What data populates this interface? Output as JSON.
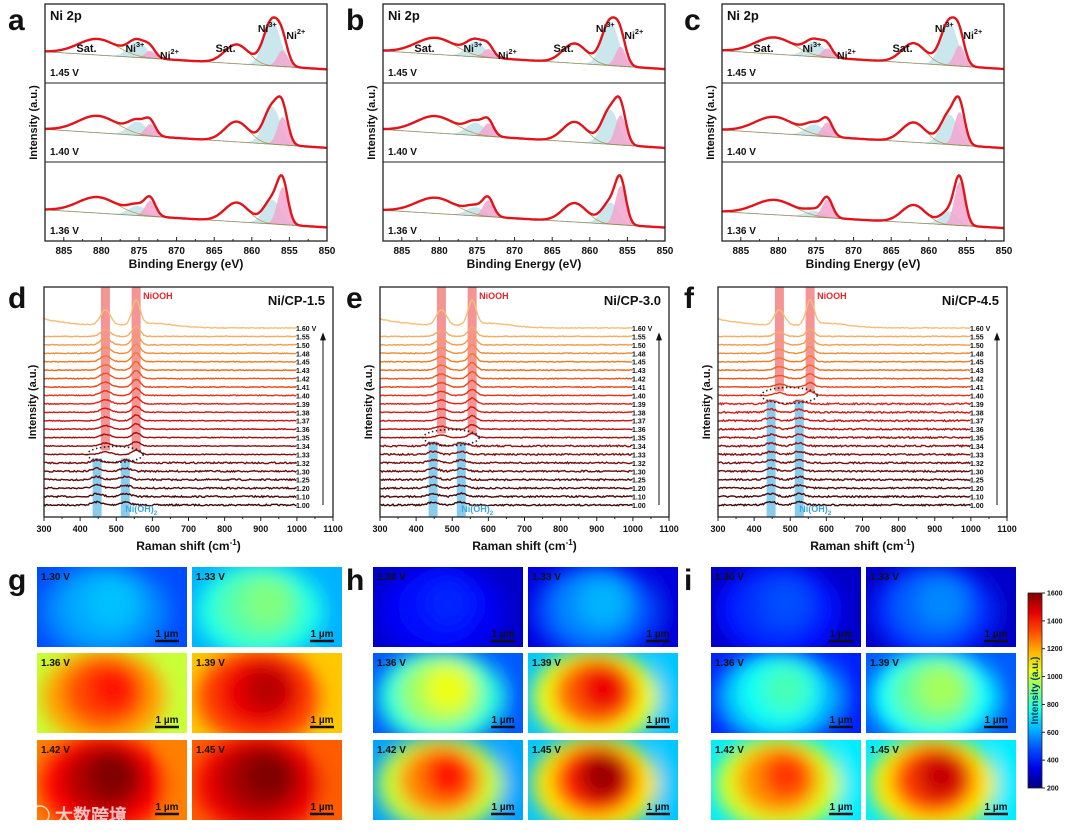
{
  "panel_letters": [
    "a",
    "b",
    "c",
    "d",
    "e",
    "f",
    "g",
    "h",
    "i"
  ],
  "watermark": "大数跨境",
  "chart_data": [
    {
      "type": "line",
      "panel": "a",
      "title": "Ni 2p",
      "xlabel": "Binding Energy (eV)",
      "ylabel": "Intensity (a.u.)",
      "xlim": [
        887.5,
        850
      ],
      "xticks": [
        885,
        880,
        875,
        870,
        865,
        860,
        855,
        850
      ],
      "peak_labels": {
        "sat": "Sat.",
        "ni3": "Ni3+",
        "ni2": "Ni2+"
      },
      "peaks_eV": {
        "sat1": 880.5,
        "ni3_a": 875.2,
        "ni2_a": 873.5,
        "sat2": 862.0,
        "ni3_b": 857.3,
        "ni2_b": 855.9
      },
      "spectra": [
        {
          "voltage": "1.45 V",
          "ni3_fraction": 0.78
        },
        {
          "voltage": "1.40 V",
          "ni3_fraction": 0.55
        },
        {
          "voltage": "1.36 V",
          "ni3_fraction": 0.3
        }
      ]
    },
    {
      "type": "line",
      "panel": "b",
      "title": "Ni 2p",
      "xlabel": "Binding Energy (eV)",
      "ylabel": "Intensity (a.u.)",
      "xlim": [
        887.5,
        850
      ],
      "xticks": [
        885,
        880,
        875,
        870,
        865,
        860,
        855,
        850
      ],
      "peak_labels": {
        "sat": "Sat.",
        "ni3": "Ni3+",
        "ni2": "Ni2+"
      },
      "peaks_eV": {
        "sat1": 880.5,
        "ni3_a": 875.2,
        "ni2_a": 873.5,
        "sat2": 862.0,
        "ni3_b": 857.3,
        "ni2_b": 855.9
      },
      "spectra": [
        {
          "voltage": "1.45 V",
          "ni3_fraction": 0.72
        },
        {
          "voltage": "1.40 V",
          "ni3_fraction": 0.5
        },
        {
          "voltage": "1.36 V",
          "ni3_fraction": 0.25
        }
      ]
    },
    {
      "type": "line",
      "panel": "c",
      "title": "Ni 2p",
      "xlabel": "Binding Energy (eV)",
      "ylabel": "Intensity (a.u.)",
      "xlim": [
        887.5,
        850
      ],
      "xticks": [
        885,
        880,
        875,
        870,
        865,
        860,
        855,
        850
      ],
      "peak_labels": {
        "sat": "Sat.",
        "ni3": "Ni3+",
        "ni2": "Ni2+"
      },
      "peaks_eV": {
        "sat1": 880.5,
        "ni3_a": 875.2,
        "ni2_a": 873.5,
        "sat2": 862.0,
        "ni3_b": 857.3,
        "ni2_b": 855.9
      },
      "spectra": [
        {
          "voltage": "1.45 V",
          "ni3_fraction": 0.7
        },
        {
          "voltage": "1.40 V",
          "ni3_fraction": 0.42
        },
        {
          "voltage": "1.36 V",
          "ni3_fraction": 0.08
        }
      ]
    },
    {
      "type": "line",
      "panel": "d",
      "sample": "Ni/CP-1.5",
      "xlabel": "Raman shift (cm-1)",
      "ylabel": "Intensity (a.u.)",
      "xlim": [
        300,
        1100
      ],
      "xticks": [
        300,
        400,
        500,
        600,
        700,
        800,
        900,
        1000,
        1100
      ],
      "band_labels": {
        "niooh": "NiOOH",
        "nioh2": "Ni(OH)2"
      },
      "niooh_peaks": [
        470,
        555
      ],
      "nioh2_peaks": [
        447,
        525
      ],
      "onset_voltage": 1.33,
      "voltages": [
        "1.00",
        "1.10",
        "1.20",
        "1.25",
        "1.30",
        "1.32",
        "1.33",
        "1.34",
        "1.35",
        "1.36",
        "1.37",
        "1.38",
        "1.39",
        "1.40",
        "1.41",
        "1.42",
        "1.43",
        "1.45",
        "1.48",
        "1.50",
        "1.55",
        "1.60 V"
      ]
    },
    {
      "type": "line",
      "panel": "e",
      "sample": "Ni/CP-3.0",
      "xlabel": "Raman shift (cm-1)",
      "ylabel": "Intensity (a.u.)",
      "xlim": [
        300,
        1100
      ],
      "xticks": [
        300,
        400,
        500,
        600,
        700,
        800,
        900,
        1000,
        1100
      ],
      "band_labels": {
        "niooh": "NiOOH",
        "nioh2": "Ni(OH)2"
      },
      "niooh_peaks": [
        470,
        555
      ],
      "nioh2_peaks": [
        447,
        525
      ],
      "onset_voltage": 1.35,
      "voltages": [
        "1.00",
        "1.10",
        "1.20",
        "1.25",
        "1.30",
        "1.32",
        "1.33",
        "1.34",
        "1.35",
        "1.36",
        "1.37",
        "1.38",
        "1.39",
        "1.40",
        "1.41",
        "1.42",
        "1.43",
        "1.45",
        "1.48",
        "1.50",
        "1.55",
        "1.60 V"
      ]
    },
    {
      "type": "line",
      "panel": "f",
      "sample": "Ni/CP-4.5",
      "xlabel": "Raman shift (cm-1)",
      "ylabel": "Intensity (a.u.)",
      "xlim": [
        300,
        1100
      ],
      "xticks": [
        300,
        400,
        500,
        600,
        700,
        800,
        900,
        1000,
        1100
      ],
      "band_labels": {
        "niooh": "NiOOH",
        "nioh2": "Ni(OH)2"
      },
      "niooh_peaks": [
        470,
        555
      ],
      "nioh2_peaks": [
        447,
        525
      ],
      "onset_voltage": 1.4,
      "voltages": [
        "1.00",
        "1.10",
        "1.20",
        "1.25",
        "1.30",
        "1.32",
        "1.33",
        "1.34",
        "1.35",
        "1.36",
        "1.37",
        "1.38",
        "1.39",
        "1.40",
        "1.41",
        "1.42",
        "1.43",
        "1.45",
        "1.48",
        "1.50",
        "1.55",
        "1.60 V"
      ]
    },
    {
      "type": "heatmap",
      "panel": "g",
      "scale_bar": "1 µm",
      "maps": [
        {
          "voltage": "1.30 V",
          "low": 480,
          "high": 640
        },
        {
          "voltage": "1.33 V",
          "low": 620,
          "high": 900
        },
        {
          "voltage": "1.36 V",
          "low": 1000,
          "high": 1400
        },
        {
          "voltage": "1.39 V",
          "low": 1150,
          "high": 1520
        },
        {
          "voltage": "1.42 V",
          "low": 1250,
          "high": 1600
        },
        {
          "voltage": "1.45 V",
          "low": 1300,
          "high": 1600
        }
      ]
    },
    {
      "type": "heatmap",
      "panel": "h",
      "scale_bar": "1 µm",
      "maps": [
        {
          "voltage": "1.30 V",
          "low": 300,
          "high": 420
        },
        {
          "voltage": "1.33 V",
          "low": 330,
          "high": 620
        },
        {
          "voltage": "1.36 V",
          "low": 500,
          "high": 1050
        },
        {
          "voltage": "1.39 V",
          "low": 650,
          "high": 1450
        },
        {
          "voltage": "1.42 V",
          "low": 600,
          "high": 1400
        },
        {
          "voltage": "1.45 V",
          "low": 650,
          "high": 1560
        }
      ]
    },
    {
      "type": "heatmap",
      "panel": "i",
      "scale_bar": "1 µm",
      "maps": [
        {
          "voltage": "1.30 V",
          "low": 300,
          "high": 480
        },
        {
          "voltage": "1.33 V",
          "low": 300,
          "high": 560
        },
        {
          "voltage": "1.36 V",
          "low": 420,
          "high": 820
        },
        {
          "voltage": "1.39 V",
          "low": 500,
          "high": 950
        },
        {
          "voltage": "1.42 V",
          "low": 700,
          "high": 1350
        },
        {
          "voltage": "1.45 V",
          "low": 700,
          "high": 1500
        }
      ]
    },
    {
      "type": "colorbar",
      "label": "Intensity (a.u.)",
      "range": [
        200,
        1600
      ],
      "ticks": [
        200,
        400,
        600,
        800,
        1000,
        1200,
        1400,
        1600
      ]
    }
  ],
  "colors": {
    "envelope": "#e0141a",
    "ni3_fill": "#bfe3ea",
    "ni2_fill": "#f2a6cf",
    "background_line": "#b89a50",
    "niooh_band": "#f07070",
    "nioh2_band": "#6cc0ea",
    "niooh_text": "#e8262a",
    "nioh2_text": "#3aa7e0"
  }
}
